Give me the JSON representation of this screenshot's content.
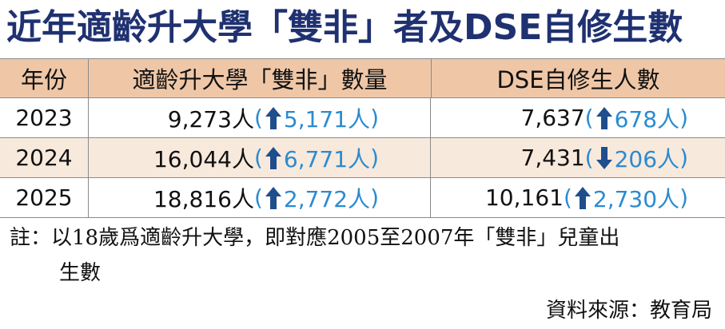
{
  "title": "近年適齡升大學「雙非」者及DSE自修生數",
  "table": {
    "headers": {
      "year": "年份",
      "count": "適齡升大學「雙非」數量",
      "dse": "DSE自修生人數"
    },
    "rows": [
      {
        "year": "2023",
        "count": "9,273人",
        "count_change_dir": "up",
        "count_change": "5,171人",
        "dse": "7,637",
        "dse_change_dir": "up",
        "dse_change": "678人"
      },
      {
        "year": "2024",
        "count": "16,044人",
        "count_change_dir": "up",
        "count_change": "6,771人",
        "dse": "7,431",
        "dse_change_dir": "down",
        "dse_change": "206人"
      },
      {
        "year": "2025",
        "count": "18,816人",
        "count_change_dir": "up",
        "count_change": "2,772人",
        "dse": "10,161",
        "dse_change_dir": "up",
        "dse_change": "2,730人"
      }
    ]
  },
  "note": {
    "line1": "註：以18歲爲適齡升大學，即對應2005至2007年「雙非」兒童出",
    "line2": "生數"
  },
  "source": "資料來源：教育局",
  "colors": {
    "title": "#1f3170",
    "header_bg": "#efc7a7",
    "alt_row_bg": "#f8e9dd",
    "change_text": "#2a8bd0",
    "arrow": "#1e4e8c"
  }
}
